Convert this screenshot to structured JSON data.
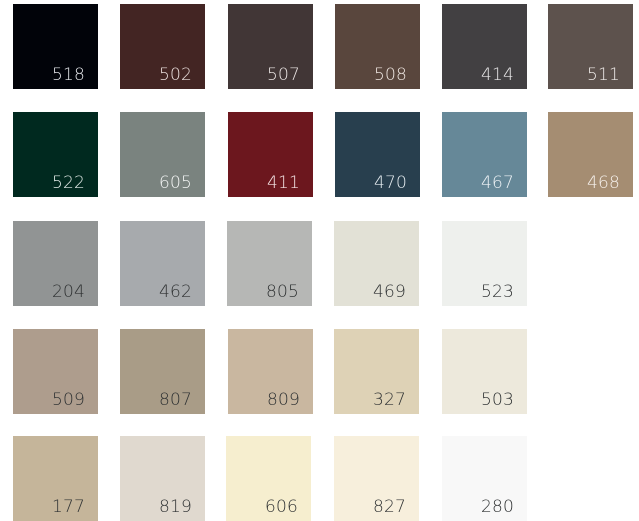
{
  "swatch_rows": [
    [
      {
        "code": "518",
        "color": "#010309",
        "text_color": "#e6e8ec"
      },
      {
        "code": "502",
        "color": "#432523",
        "text_color": "#eadfdd"
      },
      {
        "code": "507",
        "color": "#413636",
        "text_color": "#ebe5e4"
      },
      {
        "code": "508",
        "color": "#59463d",
        "text_color": "#eee6e1"
      },
      {
        "code": "414",
        "color": "#424042",
        "text_color": "#e9e8e9"
      },
      {
        "code": "511",
        "color": "#5d524d",
        "text_color": "#efebe8"
      }
    ],
    [
      {
        "code": "522",
        "color": "#00291f",
        "text_color": "#e3ece9"
      },
      {
        "code": "605",
        "color": "#7a837f",
        "text_color": "#f3f5f4"
      },
      {
        "code": "411",
        "color": "#6c171e",
        "text_color": "#f4e5e6"
      },
      {
        "code": "470",
        "color": "#283f4e",
        "text_color": "#e6ecf0"
      },
      {
        "code": "467",
        "color": "#668898",
        "text_color": "#eef3f6"
      },
      {
        "code": "468",
        "color": "#a58d72",
        "text_color": "#f6f1ec"
      }
    ],
    [
      {
        "code": "204",
        "color": "#919494",
        "text_color": "#2f3233"
      },
      {
        "code": "462",
        "color": "#a7aaad",
        "text_color": "#2f3233"
      },
      {
        "code": "805",
        "color": "#b6b7b5",
        "text_color": "#2f3233"
      },
      {
        "code": "469",
        "color": "#e2e1d6",
        "text_color": "#2f3233"
      },
      {
        "code": "523",
        "color": "#eef0ed",
        "text_color": "#2f3233"
      }
    ],
    [
      {
        "code": "509",
        "color": "#ae9d8d",
        "text_color": "#2f3233"
      },
      {
        "code": "807",
        "color": "#a99c87",
        "text_color": "#2f3233"
      },
      {
        "code": "809",
        "color": "#c9b7a0",
        "text_color": "#2f3233"
      },
      {
        "code": "327",
        "color": "#ded2b6",
        "text_color": "#2f3233"
      },
      {
        "code": "503",
        "color": "#ede9dc",
        "text_color": "#2f3233"
      }
    ],
    [
      {
        "code": "177",
        "color": "#c5b59a",
        "text_color": "#2f3233"
      },
      {
        "code": "819",
        "color": "#e0d9cf",
        "text_color": "#2f3233"
      },
      {
        "code": "606",
        "color": "#f6eecf",
        "text_color": "#2f3233"
      },
      {
        "code": "827",
        "color": "#f7efdc",
        "text_color": "#2f3233"
      },
      {
        "code": "280",
        "color": "#f8f8f8",
        "text_color": "#2f3233"
      }
    ]
  ]
}
